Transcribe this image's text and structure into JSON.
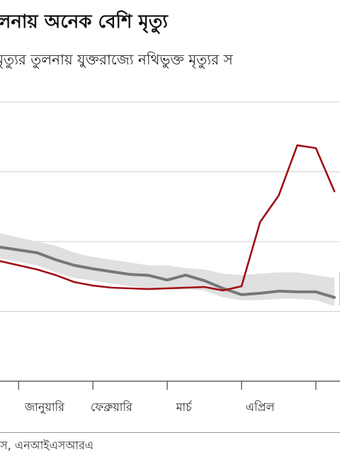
{
  "header": {
    "title": "লনায় অনেক বেশি মৃত্যু",
    "subtitle": "মৃত্যুর তুলনায় যুক্তরাজ্যে নথিভুক্ত মৃত্যুর স"
  },
  "footer": {
    "source": "এস, এনআইএসআরএ"
  },
  "colors": {
    "actual": "#a00f14",
    "expected": "#777777",
    "band": "#e0e0e0",
    "grid": "#cfcfcf",
    "axis": "#444444"
  },
  "chart_data": {
    "type": "line",
    "title": "লনায় অনেক বেশি মৃত্যু",
    "subtitle": "মৃত্যুর তুলনায় যুক্তরাজ্যে নথিভুক্ত মৃত্যুর স",
    "x": [
      1,
      2,
      3,
      4,
      5,
      6,
      7,
      8,
      9,
      10,
      11,
      12,
      13,
      14,
      15,
      16,
      17
    ],
    "categories": [
      "জানুয়ারি",
      "ফেব্রুয়ারি",
      "মার্চ",
      "এপ্রিল"
    ],
    "category_positions": [
      1.4,
      5.0,
      8.9,
      13.0
    ],
    "series": [
      {
        "values": [
          13000,
          12600,
          12100,
          11850,
          11700,
          11650,
          11600,
          11650,
          11700,
          11750,
          11500,
          11800,
          16400,
          18300,
          21900,
          21700,
          18600
        ]
      },
      {
        "values": [
          14200,
          13700,
          13300,
          13050,
          12850,
          12650,
          12580,
          12250,
          12600,
          12200,
          11650,
          11200,
          11300,
          11450,
          11400,
          11400,
          11000
        ]
      }
    ],
    "band_upper": [
      15000,
      14700,
      14200,
      13900,
      13700,
      13500,
      13300,
      13300,
      13100,
      13000,
      12700,
      12600,
      12700,
      12800,
      12800,
      12600,
      12400
    ],
    "band_lower": [
      13300,
      12800,
      12400,
      12200,
      12000,
      11800,
      11700,
      11600,
      11600,
      11500,
      11000,
      10800,
      10800,
      10900,
      10900,
      10800,
      10400
    ],
    "xlim": [
      -1.0,
      17.3
    ],
    "ylim": [
      5000,
      25000
    ],
    "y_grid": [
      5000,
      10000,
      15000,
      20000,
      25000
    ],
    "grid": true,
    "xlabel": "",
    "ylabel": ""
  }
}
